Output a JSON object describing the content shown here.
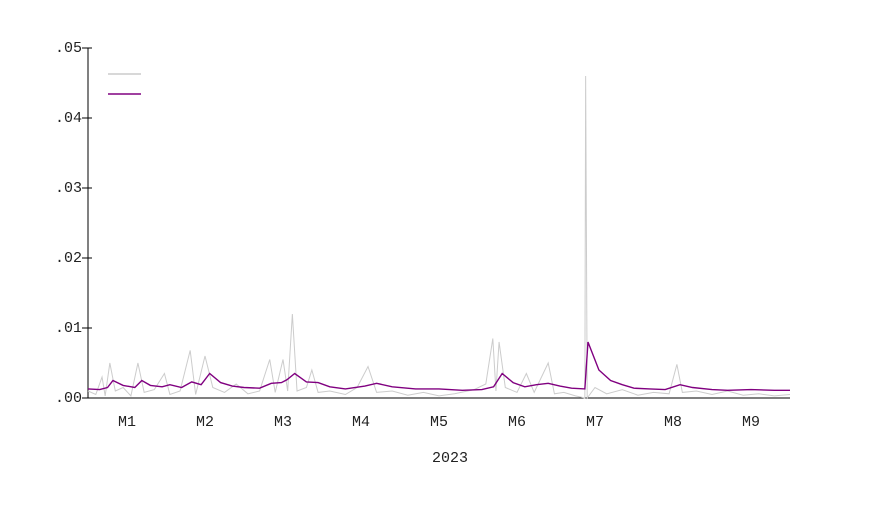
{
  "chart_data": {
    "type": "line",
    "x_label": "2023",
    "xlim": [
      0,
      9
    ],
    "ylim": [
      0,
      0.05
    ],
    "xticks": [
      {
        "value": 0.5,
        "label": "M1"
      },
      {
        "value": 1.5,
        "label": "M2"
      },
      {
        "value": 2.5,
        "label": "M3"
      },
      {
        "value": 3.5,
        "label": "M4"
      },
      {
        "value": 4.5,
        "label": "M5"
      },
      {
        "value": 5.5,
        "label": "M6"
      },
      {
        "value": 6.5,
        "label": "M7"
      },
      {
        "value": 7.5,
        "label": "M8"
      },
      {
        "value": 8.5,
        "label": "M9"
      }
    ],
    "yticks": [
      {
        "value": 0,
        "label": ".00"
      },
      {
        "value": 0.01,
        "label": ".01"
      },
      {
        "value": 0.02,
        "label": ".02"
      },
      {
        "value": 0.03,
        "label": ".03"
      },
      {
        "value": 0.04,
        "label": ".04"
      },
      {
        "value": 0.05,
        "label": ".05"
      }
    ],
    "legend": "upper left",
    "series": [
      {
        "color": "#cccccc",
        "x": [
          0.0,
          0.1,
          0.18,
          0.22,
          0.28,
          0.35,
          0.45,
          0.55,
          0.64,
          0.72,
          0.85,
          0.98,
          1.05,
          1.18,
          1.31,
          1.38,
          1.5,
          1.6,
          1.75,
          1.9,
          2.05,
          2.2,
          2.33,
          2.4,
          2.5,
          2.56,
          2.62,
          2.68,
          2.8,
          2.87,
          2.95,
          3.1,
          3.3,
          3.45,
          3.59,
          3.7,
          3.9,
          4.1,
          4.3,
          4.5,
          4.7,
          4.95,
          5.1,
          5.19,
          5.23,
          5.27,
          5.35,
          5.5,
          5.62,
          5.72,
          5.9,
          5.98,
          6.1,
          6.25,
          6.37,
          6.38,
          6.4,
          6.5,
          6.65,
          6.85,
          7.05,
          7.25,
          7.45,
          7.55,
          7.62,
          7.8,
          8.0,
          8.2,
          8.4,
          8.6,
          8.8,
          9.0
        ],
        "values": [
          0.001,
          0.0005,
          0.003,
          0.0003,
          0.005,
          0.001,
          0.0015,
          0.0003,
          0.005,
          0.0008,
          0.0012,
          0.0035,
          0.0005,
          0.001,
          0.0068,
          0.0005,
          0.006,
          0.0015,
          0.0008,
          0.002,
          0.0006,
          0.001,
          0.0055,
          0.0008,
          0.0055,
          0.001,
          0.012,
          0.001,
          0.0015,
          0.004,
          0.0008,
          0.001,
          0.0005,
          0.0015,
          0.0045,
          0.0008,
          0.001,
          0.0004,
          0.0008,
          0.0003,
          0.0006,
          0.0012,
          0.002,
          0.0085,
          0.001,
          0.008,
          0.0015,
          0.0008,
          0.0035,
          0.0008,
          0.005,
          0.0006,
          0.0008,
          0.0003,
          0.0,
          0.046,
          0.0,
          0.0015,
          0.0006,
          0.0012,
          0.0004,
          0.0008,
          0.0006,
          0.0048,
          0.0008,
          0.001,
          0.0005,
          0.001,
          0.0004,
          0.0006,
          0.0003,
          0.0005
        ]
      },
      {
        "color": "#800080",
        "x": [
          0.0,
          0.15,
          0.25,
          0.32,
          0.45,
          0.6,
          0.69,
          0.8,
          0.95,
          1.05,
          1.2,
          1.33,
          1.45,
          1.56,
          1.7,
          1.85,
          2.0,
          2.2,
          2.35,
          2.48,
          2.55,
          2.65,
          2.8,
          2.95,
          3.1,
          3.3,
          3.55,
          3.7,
          3.9,
          4.2,
          4.5,
          4.8,
          5.05,
          5.2,
          5.31,
          5.45,
          5.6,
          5.75,
          5.9,
          6.05,
          6.2,
          6.37,
          6.41,
          6.55,
          6.7,
          6.85,
          7.0,
          7.2,
          7.4,
          7.59,
          7.75,
          8.0,
          8.2,
          8.5,
          8.8,
          9.0
        ],
        "values": [
          0.0013,
          0.0012,
          0.0015,
          0.0025,
          0.0018,
          0.0015,
          0.0025,
          0.0018,
          0.0016,
          0.0019,
          0.0015,
          0.0023,
          0.0019,
          0.0035,
          0.0022,
          0.0017,
          0.0015,
          0.0014,
          0.0021,
          0.0022,
          0.0026,
          0.0035,
          0.0023,
          0.0022,
          0.0016,
          0.0013,
          0.0017,
          0.0021,
          0.0016,
          0.0013,
          0.0013,
          0.0011,
          0.0012,
          0.0016,
          0.0035,
          0.0022,
          0.0016,
          0.0019,
          0.0021,
          0.0017,
          0.0014,
          0.0013,
          0.008,
          0.004,
          0.0025,
          0.0019,
          0.0014,
          0.0013,
          0.0012,
          0.0019,
          0.0015,
          0.0012,
          0.0011,
          0.0012,
          0.0011,
          0.0011
        ]
      }
    ]
  }
}
